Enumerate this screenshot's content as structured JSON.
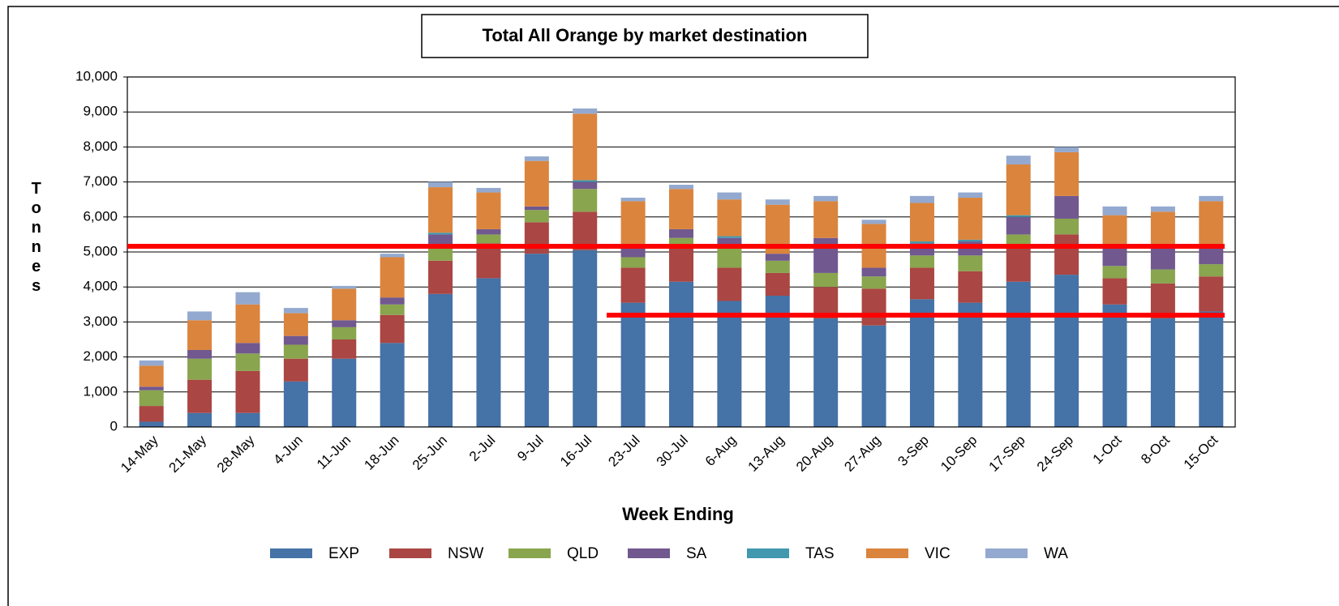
{
  "chart_data": {
    "type": "bar",
    "stacked": true,
    "title": "Total All Orange by market destination",
    "x_label": "Week Ending",
    "y_label": "Tonnes",
    "categories": [
      "14-May",
      "21-May",
      "28-May",
      "4-Jun",
      "11-Jun",
      "18-Jun",
      "25-Jun",
      "2-Jul",
      "9-Jul",
      "16-Jul",
      "23-Jul",
      "30-Jul",
      "6-Aug",
      "13-Aug",
      "20-Aug",
      "27-Aug",
      "3-Sep",
      "10-Sep",
      "17-Sep",
      "24-Sep",
      "1-Oct",
      "8-Oct",
      "15-Oct"
    ],
    "series": [
      {
        "name": "EXP",
        "color": "#4572a7",
        "values": [
          150,
          400,
          400,
          1300,
          1950,
          2400,
          3800,
          4250,
          4950,
          5050,
          3550,
          4150,
          3600,
          3750,
          3100,
          2900,
          3650,
          3550,
          4150,
          4350,
          3500,
          3100,
          3300
        ]
      },
      {
        "name": "NSW",
        "color": "#aa4643",
        "values": [
          450,
          950,
          1200,
          650,
          550,
          800,
          950,
          1000,
          900,
          1100,
          1000,
          1050,
          950,
          650,
          900,
          1050,
          900,
          900,
          1050,
          1150,
          750,
          1000,
          1000
        ]
      },
      {
        "name": "QLD",
        "color": "#89a54e",
        "values": [
          450,
          600,
          500,
          400,
          350,
          300,
          350,
          250,
          350,
          650,
          300,
          200,
          550,
          350,
          400,
          350,
          350,
          450,
          300,
          450,
          350,
          400,
          350
        ]
      },
      {
        "name": "SA",
        "color": "#71588f",
        "values": [
          100,
          250,
          300,
          250,
          200,
          200,
          400,
          150,
          100,
          200,
          250,
          250,
          300,
          200,
          1000,
          250,
          350,
          400,
          500,
          650,
          550,
          700,
          450
        ]
      },
      {
        "name": "TAS",
        "color": "#4198af",
        "values": [
          0,
          0,
          0,
          0,
          0,
          0,
          50,
          0,
          0,
          50,
          0,
          0,
          50,
          0,
          0,
          0,
          50,
          50,
          50,
          0,
          0,
          0,
          0
        ]
      },
      {
        "name": "VIC",
        "color": "#db843d",
        "values": [
          600,
          850,
          1100,
          650,
          900,
          1150,
          1300,
          1050,
          1300,
          1900,
          1350,
          1150,
          1050,
          1400,
          1050,
          1250,
          1100,
          1200,
          1450,
          1250,
          900,
          950,
          1350
        ]
      },
      {
        "name": "WA",
        "color": "#93a9cf",
        "values": [
          150,
          250,
          350,
          150,
          80,
          100,
          150,
          130,
          130,
          150,
          100,
          120,
          200,
          150,
          150,
          120,
          200,
          150,
          250,
          150,
          250,
          150,
          150
        ]
      }
    ],
    "ylim": [
      0,
      10000
    ],
    "yticks": [
      0,
      {
        "value": 1000,
        "label": "1,000"
      },
      {
        "value": 2000,
        "label": "2,000"
      },
      {
        "value": 3000,
        "label": "3,000"
      },
      {
        "value": 4000,
        "label": "4,000"
      },
      {
        "value": 5000,
        "label": "5,000"
      },
      {
        "value": 6000,
        "label": "6,000"
      },
      {
        "value": 7000,
        "label": "7,000"
      },
      {
        "value": 8000,
        "label": "8,000"
      },
      {
        "value": 9000,
        "label": "9,000"
      },
      {
        "value": 10000,
        "label": "10,000"
      }
    ],
    "grid": true,
    "legend": "bottom"
  }
}
